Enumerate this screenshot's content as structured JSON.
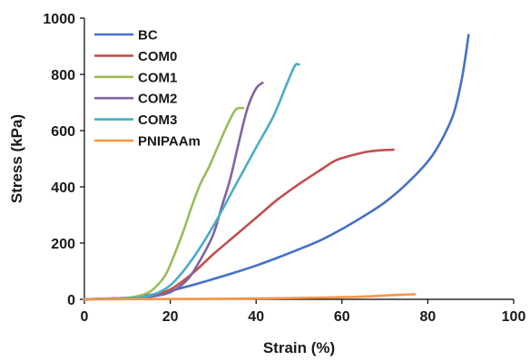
{
  "chart_data": {
    "type": "line",
    "title": "",
    "xlabel": "Strain (%)",
    "ylabel": "Stress (kPa)",
    "xlim": [
      0,
      100
    ],
    "ylim": [
      0,
      1000
    ],
    "xticks": [
      "0",
      "20",
      "40",
      "60",
      "80",
      "100"
    ],
    "yticks": [
      "0",
      "200",
      "400",
      "600",
      "800",
      "1000"
    ],
    "grid": false,
    "legend_position": "top-left",
    "series": [
      {
        "name": "BC",
        "color": "#4472C4",
        "points": [
          [
            0,
            0
          ],
          [
            10,
            5
          ],
          [
            15,
            15
          ],
          [
            20,
            30
          ],
          [
            25,
            50
          ],
          [
            30,
            72
          ],
          [
            35,
            95
          ],
          [
            40,
            120
          ],
          [
            45,
            148
          ],
          [
            50,
            178
          ],
          [
            55,
            210
          ],
          [
            60,
            250
          ],
          [
            65,
            295
          ],
          [
            70,
            345
          ],
          [
            75,
            410
          ],
          [
            80,
            490
          ],
          [
            83,
            560
          ],
          [
            86,
            660
          ],
          [
            88,
            790
          ],
          [
            89.5,
            940
          ]
        ]
      },
      {
        "name": "COM0",
        "color": "#C0504D",
        "points": [
          [
            0,
            0
          ],
          [
            10,
            5
          ],
          [
            15,
            12
          ],
          [
            20,
            35
          ],
          [
            25,
            90
          ],
          [
            30,
            160
          ],
          [
            35,
            225
          ],
          [
            40,
            290
          ],
          [
            45,
            355
          ],
          [
            50,
            410
          ],
          [
            55,
            460
          ],
          [
            58,
            490
          ],
          [
            60,
            502
          ],
          [
            63,
            515
          ],
          [
            66,
            525
          ],
          [
            69,
            530
          ],
          [
            72,
            532
          ]
        ]
      },
      {
        "name": "COM1",
        "color": "#9BBB59",
        "points": [
          [
            0,
            0
          ],
          [
            8,
            3
          ],
          [
            12,
            10
          ],
          [
            15,
            25
          ],
          [
            17,
            50
          ],
          [
            19,
            90
          ],
          [
            21,
            160
          ],
          [
            23,
            240
          ],
          [
            25,
            330
          ],
          [
            27,
            410
          ],
          [
            29,
            470
          ],
          [
            31,
            540
          ],
          [
            33,
            610
          ],
          [
            35,
            670
          ],
          [
            36,
            680
          ],
          [
            37,
            680
          ]
        ]
      },
      {
        "name": "COM2",
        "color": "#8064A2",
        "points": [
          [
            0,
            0
          ],
          [
            10,
            3
          ],
          [
            15,
            8
          ],
          [
            20,
            25
          ],
          [
            24,
            70
          ],
          [
            27,
            140
          ],
          [
            30,
            230
          ],
          [
            32,
            330
          ],
          [
            34,
            430
          ],
          [
            36,
            560
          ],
          [
            38,
            680
          ],
          [
            40,
            750
          ],
          [
            41.5,
            770
          ]
        ]
      },
      {
        "name": "COM3",
        "color": "#4BACC6",
        "points": [
          [
            0,
            0
          ],
          [
            10,
            4
          ],
          [
            15,
            12
          ],
          [
            20,
            50
          ],
          [
            25,
            140
          ],
          [
            30,
            260
          ],
          [
            35,
            400
          ],
          [
            40,
            540
          ],
          [
            44,
            650
          ],
          [
            47,
            760
          ],
          [
            49,
            830
          ],
          [
            50,
            835
          ]
        ]
      },
      {
        "name": "PNIPAAm",
        "color": "#F79646",
        "points": [
          [
            0,
            0
          ],
          [
            20,
            1
          ],
          [
            40,
            3
          ],
          [
            55,
            6
          ],
          [
            65,
            10
          ],
          [
            72,
            15
          ],
          [
            77,
            18
          ]
        ]
      }
    ]
  }
}
